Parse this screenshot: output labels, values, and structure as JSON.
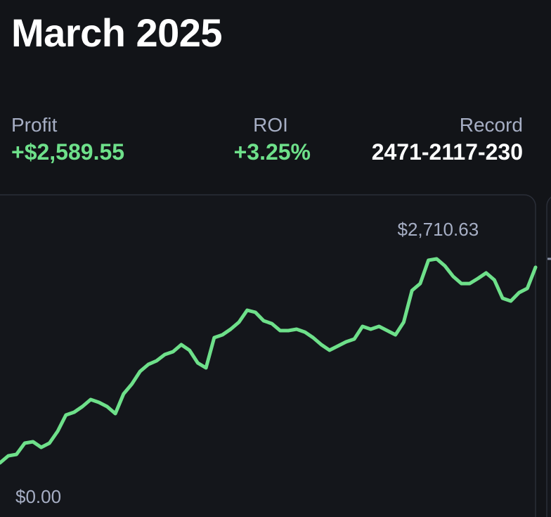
{
  "header": {
    "title": "March 2025"
  },
  "stats": [
    {
      "label": "Profit",
      "value": "+$2,589.55"
    },
    {
      "label": "ROI",
      "value": "+3.25%"
    },
    {
      "label": "Record",
      "value": "2471-2117-230"
    }
  ],
  "chart_data": {
    "type": "line",
    "color": "#6ee08a",
    "ylim": [
      0,
      2710.63
    ],
    "annotations": [
      {
        "value": 2710.63,
        "label": "$2,710.63"
      },
      {
        "value": 0,
        "label": "$0.00"
      }
    ],
    "values": [
      0,
      93,
      112,
      262,
      280,
      206,
      262,
      421,
      636,
      673,
      748,
      841,
      804,
      748,
      654,
      916,
      1047,
      1215,
      1308,
      1355,
      1439,
      1477,
      1570,
      1496,
      1327,
      1262,
      1664,
      1701,
      1776,
      1869,
      2028,
      2000,
      1888,
      1850,
      1757,
      1757,
      1776,
      1738,
      1664,
      1570,
      1496,
      1552,
      1608,
      1645,
      1813,
      1776,
      1813,
      1757,
      1701,
      1869,
      2290,
      2383,
      2692,
      2710.63,
      2617,
      2477,
      2383,
      2383,
      2449,
      2524,
      2430,
      2187,
      2150,
      2262,
      2318,
      2598
    ]
  }
}
